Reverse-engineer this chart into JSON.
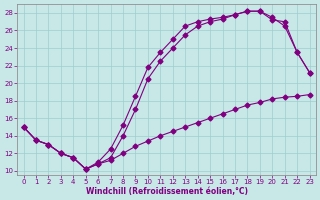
{
  "xlabel": "Windchill (Refroidissement éolien,°C)",
  "bg_color": "#c8e8e8",
  "line_color": "#800080",
  "grid_color": "#9ecece",
  "xlim": [
    -0.5,
    23.5
  ],
  "ylim": [
    9.5,
    29
  ],
  "yticks": [
    10,
    12,
    14,
    16,
    18,
    20,
    22,
    24,
    26,
    28
  ],
  "xticks": [
    0,
    1,
    2,
    3,
    4,
    5,
    6,
    7,
    8,
    9,
    10,
    11,
    12,
    13,
    14,
    15,
    16,
    17,
    18,
    19,
    20,
    21,
    22,
    23
  ],
  "line1_x": [
    0,
    1,
    2,
    3,
    4,
    5,
    6,
    7,
    8,
    9,
    10,
    11,
    12,
    13,
    14,
    15,
    16,
    17,
    18,
    19,
    20,
    21,
    22,
    23
  ],
  "line1_y": [
    15,
    13.5,
    13,
    12,
    11.5,
    10.2,
    11,
    12.5,
    15.2,
    18.5,
    21.8,
    23.5,
    25,
    26.5,
    27,
    27.3,
    27.5,
    27.8,
    28.2,
    28.2,
    27.2,
    27.0,
    23.5,
    21.2
  ],
  "line2_x": [
    0,
    1,
    2,
    3,
    4,
    5,
    6,
    7,
    8,
    9,
    10,
    11,
    12,
    13,
    14,
    15,
    16,
    17,
    18,
    19,
    20,
    21,
    22,
    23
  ],
  "line2_y": [
    15,
    13.5,
    13,
    12,
    11.5,
    10.2,
    10.8,
    11.2,
    12.0,
    12.8,
    13.4,
    14.0,
    14.5,
    15.0,
    15.5,
    16.0,
    16.5,
    17.0,
    17.5,
    17.8,
    18.2,
    18.4,
    18.5,
    18.7
  ],
  "line3_x": [
    0,
    1,
    2,
    3,
    4,
    5,
    6,
    7,
    8,
    9,
    10,
    11,
    12,
    13,
    14,
    15,
    16,
    17,
    18,
    19,
    20,
    21,
    22,
    23
  ],
  "line3_y": [
    15.0,
    13.5,
    13,
    12,
    11.5,
    10.2,
    10.8,
    11.5,
    14.0,
    17.0,
    20.5,
    22.5,
    24.0,
    25.5,
    26.5,
    27.0,
    27.3,
    27.8,
    28.2,
    28.2,
    27.5,
    26.5,
    23.5,
    21.2
  ],
  "marker": "D",
  "markersize": 2.5,
  "linewidth": 0.8,
  "tick_fontsize": 5,
  "xlabel_fontsize": 5.5
}
